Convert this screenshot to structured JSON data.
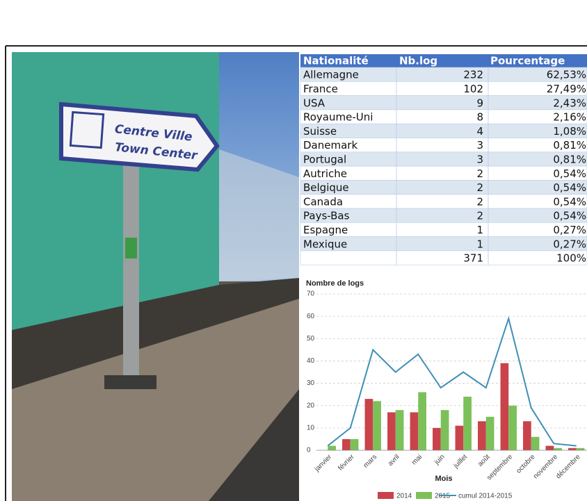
{
  "photo": {
    "sign_lines": [
      "Centre Ville",
      "Town Center"
    ]
  },
  "table": {
    "columns": [
      "Nationalité",
      "Nb.log",
      "Pourcentage"
    ],
    "rows": [
      [
        "Allemagne",
        232,
        "62,53%"
      ],
      [
        "France",
        102,
        "27,49%"
      ],
      [
        "USA",
        9,
        "2,43%"
      ],
      [
        "Royaume-Uni",
        8,
        "2,16%"
      ],
      [
        "Suisse",
        4,
        "1,08%"
      ],
      [
        "Danemark",
        3,
        "0,81%"
      ],
      [
        "Portugal",
        3,
        "0,81%"
      ],
      [
        "Autriche",
        2,
        "0,54%"
      ],
      [
        "Belgique",
        2,
        "0,54%"
      ],
      [
        "Canada",
        2,
        "0,54%"
      ],
      [
        "Pays-Bas",
        2,
        "0,54%"
      ],
      [
        "Espagne",
        1,
        "0,27%"
      ],
      [
        "Mexique",
        1,
        "0,27%"
      ]
    ],
    "total": {
      "count": 371,
      "percent": "100%"
    }
  },
  "chart_data": {
    "type": "bar",
    "title": "Nombre de logs",
    "x_label": "Mois",
    "categories": [
      "janvier",
      "février",
      "mars",
      "avril",
      "mai",
      "juin",
      "juillet",
      "août",
      "septembre",
      "octobre",
      "novembre",
      "décembre"
    ],
    "series": [
      {
        "name": "2014",
        "color": "#c9434b",
        "values": [
          0,
          5,
          23,
          17,
          17,
          10,
          11,
          13,
          39,
          13,
          2,
          1
        ]
      },
      {
        "name": "2015",
        "color": "#7cc05a",
        "values": [
          2,
          5,
          22,
          18,
          26,
          18,
          24,
          15,
          20,
          6,
          1,
          1
        ]
      },
      {
        "name": "cumul 2014-2015",
        "color": "#3f8fb5",
        "type": "line",
        "values": [
          2,
          10,
          45,
          35,
          43,
          28,
          35,
          28,
          59,
          19,
          3,
          2
        ]
      }
    ],
    "ylim": [
      0,
      70
    ],
    "yticks": [
      0,
      10,
      20,
      30,
      40,
      50,
      60,
      70
    ],
    "grid": true
  }
}
